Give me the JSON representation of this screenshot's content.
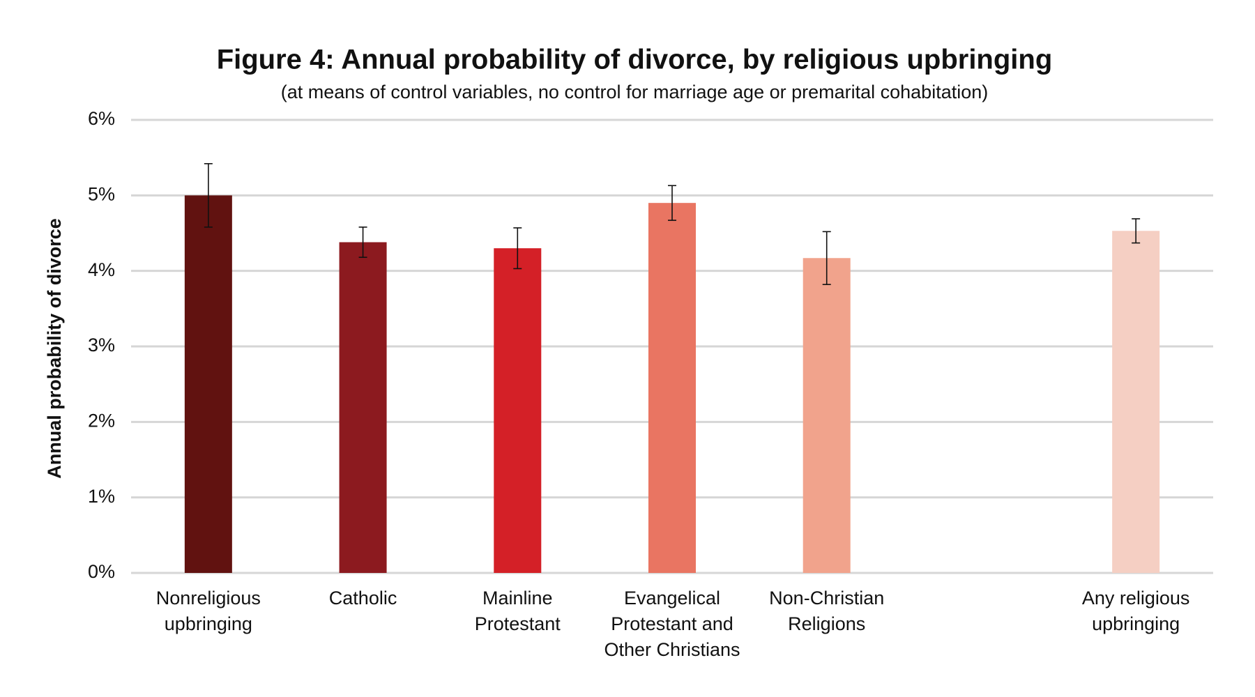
{
  "chart_data": {
    "type": "bar",
    "title": "Figure 4: Annual probability of divorce, by religious upbringing",
    "subtitle": "(at means of control variables, no control for marriage age or premarital cohabitation)",
    "y_label": "Annual probability of divorce",
    "categories": [
      "Nonreligious upbringing",
      "Catholic",
      "Mainline Protestant",
      "Evangelical Protestant and Other Christians",
      "Non-Christian Religions",
      null,
      "Any religious upbringing"
    ],
    "values": [
      5.0,
      4.38,
      4.3,
      4.9,
      4.17,
      null,
      4.53
    ],
    "errors": [
      0.42,
      0.2,
      0.27,
      0.23,
      0.35,
      null,
      0.16
    ],
    "colors": [
      "#611210",
      "#8c1a1f",
      "#d42027",
      "#e97562",
      "#f1a38c",
      null,
      "#f5cfc3"
    ],
    "ylim": [
      0,
      6
    ],
    "yticks": [
      {
        "value": 0,
        "label": "0%"
      },
      {
        "value": 1,
        "label": "1%"
      },
      {
        "value": 2,
        "label": "2%"
      },
      {
        "value": 3,
        "label": "3%"
      },
      {
        "value": 4,
        "label": "4%"
      },
      {
        "value": 5,
        "label": "5%"
      },
      {
        "value": 6,
        "label": "6%"
      }
    ],
    "grid": true
  }
}
